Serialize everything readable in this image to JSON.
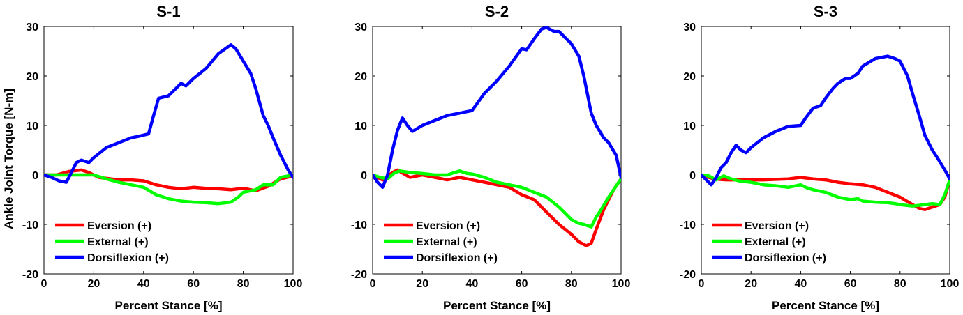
{
  "figure": {
    "ylabel": "Ankle Joint Torque [N-m]",
    "xlabel": "Percent Stance [%]"
  },
  "colors": {
    "eversion": "#ff0000",
    "external": "#00ff00",
    "dorsiflexion": "#0000ff"
  },
  "chart_data": [
    {
      "type": "line",
      "title": "S-1",
      "xlabel": "Percent Stance [%]",
      "ylabel": "Ankle Joint Torque [N-m]",
      "xlim": [
        0,
        100
      ],
      "ylim": [
        -20,
        30
      ],
      "xticks": [
        0,
        20,
        40,
        60,
        80,
        100
      ],
      "yticks": [
        -20,
        -10,
        0,
        10,
        20,
        30
      ],
      "legend_position": "bottom-left",
      "series": [
        {
          "name": "Eversion (+)",
          "color": "#ff0000",
          "x": [
            0,
            5,
            10,
            15,
            18,
            22,
            30,
            35,
            40,
            45,
            50,
            55,
            60,
            65,
            70,
            75,
            80,
            85,
            90,
            95,
            100
          ],
          "y": [
            0,
            0,
            0.7,
            1.0,
            0.5,
            -0.5,
            -1.0,
            -1.0,
            -1.2,
            -2.0,
            -2.5,
            -2.8,
            -2.5,
            -2.7,
            -2.8,
            -3.0,
            -2.7,
            -3.2,
            -2.3,
            -0.8,
            -0.2
          ]
        },
        {
          "name": "External (+)",
          "color": "#00ff00",
          "x": [
            0,
            5,
            10,
            15,
            20,
            25,
            30,
            35,
            40,
            45,
            50,
            55,
            60,
            65,
            70,
            75,
            78,
            80,
            85,
            88,
            92,
            95,
            100
          ],
          "y": [
            0,
            0,
            0,
            0,
            0,
            -0.8,
            -1.5,
            -2.0,
            -2.5,
            -4.0,
            -4.8,
            -5.3,
            -5.5,
            -5.6,
            -5.8,
            -5.5,
            -4.5,
            -3.5,
            -3.0,
            -2.0,
            -2.0,
            -0.5,
            0
          ]
        },
        {
          "name": "Dorsiflexion (+)",
          "color": "#0000ff",
          "x": [
            0,
            3,
            6,
            9,
            11,
            13,
            15,
            18,
            20,
            25,
            30,
            35,
            38,
            42,
            44,
            46,
            50,
            53,
            55,
            57,
            60,
            65,
            70,
            75,
            77,
            80,
            83,
            85,
            88,
            90,
            92,
            95,
            98,
            100
          ],
          "y": [
            0,
            -0.5,
            -1.2,
            -1.5,
            0.5,
            2.5,
            3.0,
            2.5,
            3.5,
            5.5,
            6.5,
            7.5,
            7.8,
            8.3,
            12.0,
            15.5,
            16.0,
            17.5,
            18.5,
            18.0,
            19.5,
            21.5,
            24.5,
            26.3,
            25.5,
            23.0,
            20.5,
            17.5,
            12.0,
            10.0,
            7.5,
            4.0,
            1.0,
            -0.5
          ]
        }
      ]
    },
    {
      "type": "line",
      "title": "S-2",
      "xlabel": "Percent Stance [%]",
      "ylabel": "",
      "xlim": [
        0,
        100
      ],
      "ylim": [
        -20,
        30
      ],
      "xticks": [
        0,
        20,
        40,
        60,
        80,
        100
      ],
      "yticks": [
        -20,
        -10,
        0,
        10,
        20,
        30
      ],
      "legend_position": "bottom-left",
      "series": [
        {
          "name": "Eversion (+)",
          "color": "#ff0000",
          "x": [
            0,
            4,
            8,
            10,
            15,
            20,
            25,
            30,
            35,
            40,
            45,
            50,
            55,
            60,
            65,
            70,
            75,
            80,
            83,
            86,
            88,
            90,
            93,
            97,
            100
          ],
          "y": [
            0,
            -1.0,
            0.5,
            1.0,
            -0.5,
            0,
            -0.5,
            -1.0,
            -0.5,
            -1.0,
            -1.5,
            -2.0,
            -2.5,
            -4.0,
            -5.0,
            -7.5,
            -10.0,
            -12.0,
            -13.5,
            -14.3,
            -13.8,
            -11.0,
            -7.0,
            -3.0,
            -0.8
          ]
        },
        {
          "name": "External (+)",
          "color": "#00ff00",
          "x": [
            0,
            3,
            6,
            9,
            11,
            15,
            20,
            25,
            30,
            33,
            35,
            38,
            40,
            45,
            50,
            55,
            60,
            65,
            70,
            75,
            80,
            83,
            85,
            88,
            90,
            92,
            95,
            97,
            100
          ],
          "y": [
            0,
            -0.5,
            -0.8,
            0.5,
            0.8,
            0.5,
            0.3,
            0,
            0,
            0.5,
            0.8,
            0.3,
            0.2,
            -0.5,
            -1.5,
            -2.0,
            -2.5,
            -3.5,
            -4.5,
            -6.5,
            -9.0,
            -9.8,
            -10.0,
            -10.5,
            -8.5,
            -7.0,
            -4.5,
            -3.0,
            -0.8
          ]
        },
        {
          "name": "Dorsiflexion (+)",
          "color": "#0000ff",
          "x": [
            0,
            2,
            4,
            6,
            8,
            10,
            12,
            14,
            16,
            20,
            25,
            30,
            35,
            40,
            45,
            50,
            55,
            60,
            62,
            65,
            68,
            70,
            73,
            75,
            78,
            80,
            83,
            85,
            88,
            90,
            93,
            95,
            98,
            100
          ],
          "y": [
            0,
            -1.5,
            -2.5,
            0,
            5.0,
            9.0,
            11.5,
            10.0,
            8.8,
            10.0,
            11.0,
            12.0,
            12.5,
            13.0,
            16.5,
            19.0,
            22.0,
            25.5,
            25.3,
            27.5,
            29.5,
            29.8,
            29.0,
            29.0,
            27.5,
            26.5,
            24.0,
            20.0,
            12.5,
            10.0,
            7.5,
            6.5,
            4.0,
            -0.5
          ]
        }
      ]
    },
    {
      "type": "line",
      "title": "S-3",
      "xlabel": "Percent Stance [%]",
      "ylabel": "",
      "xlim": [
        0,
        100
      ],
      "ylim": [
        -20,
        30
      ],
      "xticks": [
        0,
        20,
        40,
        60,
        80,
        100
      ],
      "yticks": [
        -20,
        -10,
        0,
        10,
        20,
        30
      ],
      "legend_position": "bottom-left",
      "series": [
        {
          "name": "Eversion (+)",
          "color": "#ff0000",
          "x": [
            0,
            5,
            10,
            15,
            20,
            25,
            30,
            35,
            40,
            45,
            50,
            55,
            60,
            65,
            70,
            75,
            80,
            85,
            88,
            90,
            93,
            96,
            98,
            100
          ],
          "y": [
            0,
            -0.8,
            -1.0,
            -1.0,
            -1.0,
            -1.0,
            -0.9,
            -0.8,
            -0.5,
            -0.8,
            -1.0,
            -1.5,
            -1.8,
            -2.0,
            -2.5,
            -3.5,
            -4.5,
            -6.0,
            -6.8,
            -7.0,
            -6.5,
            -6.0,
            -4.5,
            -1.0
          ]
        },
        {
          "name": "External (+)",
          "color": "#00ff00",
          "x": [
            0,
            3,
            6,
            9,
            12,
            15,
            20,
            25,
            30,
            35,
            40,
            42,
            45,
            50,
            55,
            60,
            63,
            65,
            70,
            75,
            78,
            80,
            85,
            90,
            93,
            96,
            98,
            100
          ],
          "y": [
            0,
            -0.2,
            -1.0,
            -0.2,
            -0.8,
            -1.2,
            -1.5,
            -2.0,
            -2.2,
            -2.5,
            -2.0,
            -2.5,
            -3.0,
            -3.5,
            -4.5,
            -5.0,
            -4.8,
            -5.3,
            -5.5,
            -5.6,
            -5.8,
            -6.0,
            -6.3,
            -6.0,
            -5.8,
            -6.0,
            -4.0,
            -1.0
          ]
        },
        {
          "name": "Dorsiflexion (+)",
          "color": "#0000ff",
          "x": [
            0,
            2,
            4,
            6,
            8,
            10,
            12,
            14,
            16,
            18,
            20,
            25,
            30,
            35,
            40,
            42,
            45,
            48,
            50,
            53,
            55,
            58,
            60,
            63,
            65,
            70,
            75,
            78,
            80,
            83,
            85,
            88,
            90,
            93,
            95,
            98,
            100
          ],
          "y": [
            0,
            -1.0,
            -2.0,
            -0.5,
            1.5,
            2.5,
            4.5,
            6.0,
            5.0,
            4.5,
            5.5,
            7.5,
            8.8,
            9.8,
            10.0,
            11.5,
            13.5,
            14.0,
            15.5,
            17.5,
            18.5,
            19.5,
            19.5,
            20.5,
            22.0,
            23.5,
            24.0,
            23.5,
            23.0,
            20.0,
            16.5,
            11.5,
            8.0,
            5.0,
            3.5,
            1.0,
            -0.8
          ]
        }
      ]
    }
  ]
}
